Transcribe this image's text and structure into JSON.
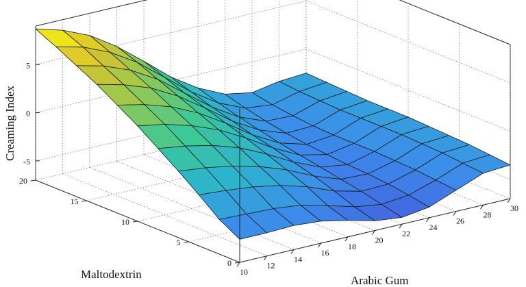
{
  "chart_data": {
    "type": "surface",
    "title": "",
    "xlabel": "Arabic Gum",
    "ylabel": "Maltodextrin",
    "zlabel": "Creaming Index",
    "xlim": [
      10,
      30
    ],
    "ylim": [
      0,
      20
    ],
    "zlim": [
      -7,
      9
    ],
    "x_ticks": [
      "10",
      "12",
      "14",
      "16",
      "18",
      "20",
      "22",
      "24",
      "26",
      "28",
      "30"
    ],
    "y_ticks": [
      "0",
      "5",
      "10",
      "15",
      "20"
    ],
    "z_ticks": [
      "-5",
      "0",
      "5"
    ],
    "grid": true,
    "colormap": "parula",
    "surface": {
      "x": [
        10,
        12,
        14,
        16,
        18,
        20,
        22,
        24,
        26,
        28,
        30
      ],
      "y": [
        0,
        2,
        4,
        6,
        8,
        10,
        12,
        14,
        16,
        18,
        20
      ],
      "z": [
        [
          -4.6,
          -4.6,
          -4.5,
          -4.7,
          -5.3,
          -6.0,
          -6.3,
          -5.9,
          -4.8,
          -3.7,
          -3.5
        ],
        [
          -3.4,
          -3.5,
          -3.6,
          -3.9,
          -4.6,
          -5.4,
          -5.8,
          -5.5,
          -4.6,
          -3.5,
          -3.3
        ],
        [
          -1.7,
          -1.9,
          -2.2,
          -2.7,
          -3.5,
          -4.6,
          -5.3,
          -5.2,
          -4.4,
          -3.3,
          -3.1
        ],
        [
          -0.1,
          -0.4,
          -0.9,
          -1.6,
          -2.6,
          -3.9,
          -4.9,
          -5.0,
          -4.3,
          -3.2,
          -3.0
        ],
        [
          1.4,
          1.0,
          0.4,
          -0.5,
          -1.8,
          -3.3,
          -4.5,
          -4.9,
          -4.2,
          -3.1,
          -2.9
        ],
        [
          2.9,
          2.4,
          1.6,
          0.5,
          -1.0,
          -2.7,
          -4.1,
          -4.7,
          -4.2,
          -3.1,
          -2.8
        ],
        [
          4.2,
          3.6,
          2.7,
          1.4,
          -0.3,
          -2.2,
          -3.7,
          -4.5,
          -4.2,
          -3.1,
          -2.8
        ],
        [
          5.5,
          4.8,
          3.8,
          2.3,
          0.4,
          -1.6,
          -3.2,
          -4.2,
          -4.1,
          -3.1,
          -2.8
        ],
        [
          6.6,
          5.9,
          4.8,
          3.2,
          1.1,
          -1.0,
          -2.7,
          -3.8,
          -3.9,
          -3.0,
          -2.7
        ],
        [
          7.7,
          7.0,
          5.8,
          4.1,
          1.9,
          -0.3,
          -2.1,
          -3.3,
          -3.6,
          -2.9,
          -2.6
        ],
        [
          8.7,
          7.9,
          6.7,
          4.9,
          2.7,
          0.4,
          -1.4,
          -2.7,
          -3.2,
          -2.7,
          -2.5
        ]
      ]
    }
  }
}
